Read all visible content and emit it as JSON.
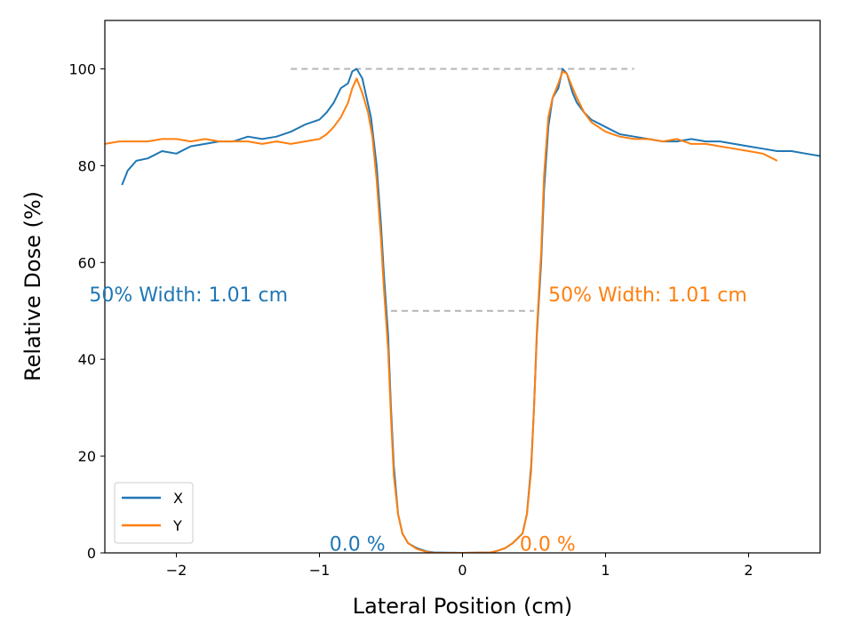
{
  "chart_data": {
    "type": "line",
    "title": "",
    "xlabel": "Lateral Position (cm)",
    "ylabel": "Relative Dose (%)",
    "xlim": [
      -2.5,
      2.5
    ],
    "ylim": [
      0,
      110
    ],
    "grid": false,
    "legend_placement": "lower-left",
    "x_ticks": [
      {
        "value": -2,
        "label": "−2"
      },
      {
        "value": -1,
        "label": "−1"
      },
      {
        "value": 0,
        "label": "0"
      },
      {
        "value": 1,
        "label": "1"
      },
      {
        "value": 2,
        "label": "2"
      }
    ],
    "y_ticks": [
      {
        "value": 0,
        "label": "0"
      },
      {
        "value": 20,
        "label": "20"
      },
      {
        "value": 40,
        "label": "40"
      },
      {
        "value": 60,
        "label": "60"
      },
      {
        "value": 80,
        "label": "80"
      },
      {
        "value": 100,
        "label": "100"
      }
    ],
    "series": [
      {
        "name": "X",
        "color": "#1f77b4",
        "points": [
          [
            -2.38,
            76
          ],
          [
            -2.34,
            79
          ],
          [
            -2.28,
            81
          ],
          [
            -2.2,
            81.5
          ],
          [
            -2.1,
            83
          ],
          [
            -2.0,
            82.5
          ],
          [
            -1.9,
            84
          ],
          [
            -1.8,
            84.5
          ],
          [
            -1.7,
            85
          ],
          [
            -1.6,
            85
          ],
          [
            -1.5,
            86
          ],
          [
            -1.4,
            85.5
          ],
          [
            -1.3,
            86
          ],
          [
            -1.2,
            87
          ],
          [
            -1.1,
            88.5
          ],
          [
            -1.0,
            89.5
          ],
          [
            -0.95,
            91
          ],
          [
            -0.9,
            93
          ],
          [
            -0.85,
            96
          ],
          [
            -0.8,
            97
          ],
          [
            -0.77,
            99.5
          ],
          [
            -0.74,
            100
          ],
          [
            -0.7,
            98
          ],
          [
            -0.67,
            94
          ],
          [
            -0.64,
            90
          ],
          [
            -0.6,
            80
          ],
          [
            -0.57,
            68
          ],
          [
            -0.55,
            58
          ],
          [
            -0.52,
            45
          ],
          [
            -0.5,
            30
          ],
          [
            -0.48,
            18
          ],
          [
            -0.45,
            8
          ],
          [
            -0.42,
            4
          ],
          [
            -0.38,
            2
          ],
          [
            -0.32,
            1
          ],
          [
            -0.25,
            0.3
          ],
          [
            -0.2,
            0.1
          ],
          [
            0,
            0
          ],
          [
            0.2,
            0.1
          ],
          [
            0.25,
            0.5
          ],
          [
            0.3,
            1
          ],
          [
            0.35,
            2
          ],
          [
            0.42,
            4
          ],
          [
            0.45,
            8
          ],
          [
            0.48,
            18
          ],
          [
            0.5,
            30
          ],
          [
            0.52,
            45
          ],
          [
            0.55,
            60
          ],
          [
            0.57,
            75
          ],
          [
            0.6,
            88
          ],
          [
            0.63,
            94
          ],
          [
            0.67,
            96
          ],
          [
            0.7,
            100
          ],
          [
            0.73,
            99
          ],
          [
            0.77,
            95
          ],
          [
            0.8,
            93
          ],
          [
            0.85,
            91
          ],
          [
            0.9,
            89.5
          ],
          [
            1.0,
            88
          ],
          [
            1.1,
            86.5
          ],
          [
            1.2,
            86
          ],
          [
            1.3,
            85.5
          ],
          [
            1.4,
            85
          ],
          [
            1.5,
            85
          ],
          [
            1.6,
            85.5
          ],
          [
            1.7,
            85
          ],
          [
            1.8,
            85
          ],
          [
            1.9,
            84.5
          ],
          [
            2.0,
            84
          ],
          [
            2.1,
            83.5
          ],
          [
            2.2,
            83
          ],
          [
            2.3,
            83
          ],
          [
            2.4,
            82.5
          ],
          [
            2.5,
            82
          ]
        ]
      },
      {
        "name": "Y",
        "color": "#ff7f0e",
        "points": [
          [
            -2.5,
            84.5
          ],
          [
            -2.4,
            85
          ],
          [
            -2.3,
            85
          ],
          [
            -2.2,
            85
          ],
          [
            -2.1,
            85.5
          ],
          [
            -2.0,
            85.5
          ],
          [
            -1.9,
            85
          ],
          [
            -1.8,
            85.5
          ],
          [
            -1.7,
            85
          ],
          [
            -1.6,
            85
          ],
          [
            -1.5,
            85
          ],
          [
            -1.4,
            84.5
          ],
          [
            -1.3,
            85
          ],
          [
            -1.2,
            84.5
          ],
          [
            -1.1,
            85
          ],
          [
            -1.0,
            85.5
          ],
          [
            -0.95,
            86.5
          ],
          [
            -0.9,
            88
          ],
          [
            -0.85,
            90
          ],
          [
            -0.8,
            93
          ],
          [
            -0.77,
            96
          ],
          [
            -0.74,
            98
          ],
          [
            -0.7,
            95
          ],
          [
            -0.66,
            91
          ],
          [
            -0.63,
            86
          ],
          [
            -0.6,
            77
          ],
          [
            -0.57,
            65
          ],
          [
            -0.55,
            55
          ],
          [
            -0.52,
            42
          ],
          [
            -0.5,
            28
          ],
          [
            -0.48,
            16
          ],
          [
            -0.45,
            8
          ],
          [
            -0.42,
            4
          ],
          [
            -0.38,
            2
          ],
          [
            -0.32,
            0.8
          ],
          [
            -0.25,
            0.2
          ],
          [
            -0.2,
            0
          ],
          [
            0,
            0
          ],
          [
            0.2,
            0.1
          ],
          [
            0.25,
            0.5
          ],
          [
            0.3,
            1
          ],
          [
            0.35,
            2
          ],
          [
            0.42,
            4
          ],
          [
            0.45,
            8
          ],
          [
            0.48,
            17
          ],
          [
            0.5,
            30
          ],
          [
            0.52,
            46
          ],
          [
            0.55,
            62
          ],
          [
            0.57,
            78
          ],
          [
            0.6,
            90
          ],
          [
            0.63,
            94
          ],
          [
            0.67,
            97
          ],
          [
            0.7,
            99.5
          ],
          [
            0.73,
            99
          ],
          [
            0.77,
            96
          ],
          [
            0.8,
            94
          ],
          [
            0.85,
            91
          ],
          [
            0.9,
            89
          ],
          [
            1.0,
            87
          ],
          [
            1.1,
            86
          ],
          [
            1.2,
            85.5
          ],
          [
            1.3,
            85.5
          ],
          [
            1.4,
            85
          ],
          [
            1.5,
            85.5
          ],
          [
            1.6,
            84.5
          ],
          [
            1.7,
            84.5
          ],
          [
            1.8,
            84
          ],
          [
            1.9,
            83.5
          ],
          [
            2.0,
            83
          ],
          [
            2.1,
            82.5
          ],
          [
            2.2,
            81
          ]
        ]
      }
    ],
    "reference_lines": [
      {
        "kind": "max",
        "x": [
          -1.2,
          1.2
        ],
        "y": 100,
        "color": "#b5b5b5"
      },
      {
        "kind": "half-max",
        "x": [
          -0.5,
          0.5
        ],
        "y": 50,
        "color": "#b5b5b5"
      }
    ],
    "annotations": [
      {
        "text": "50% Width: 1.01 cm",
        "x": -1.22,
        "y": 52,
        "anchor": "end",
        "color": "#1f77b4"
      },
      {
        "text": "50% Width: 1.01 cm",
        "x": 0.6,
        "y": 52,
        "anchor": "start",
        "color": "#ff7f0e"
      },
      {
        "text": "0.0 %",
        "x": -0.93,
        "y": 0.5,
        "anchor": "start",
        "color": "#1f77b4"
      },
      {
        "text": "0.0 %",
        "x": 0.4,
        "y": 0.5,
        "anchor": "start",
        "color": "#ff7f0e"
      }
    ]
  }
}
